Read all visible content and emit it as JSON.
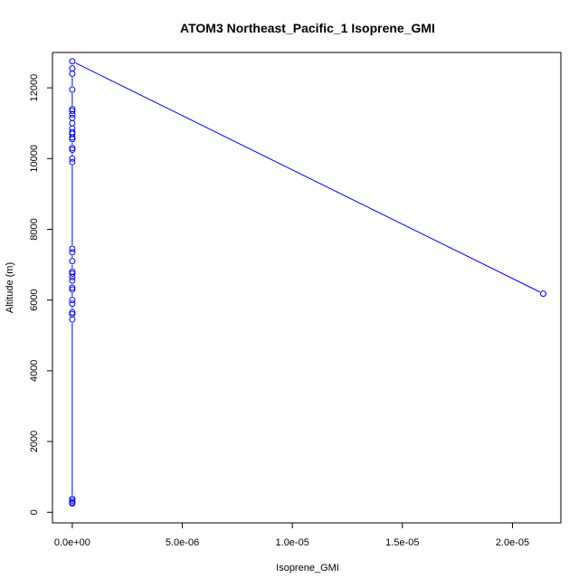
{
  "chart_data": {
    "type": "line",
    "title": "ATOM3 Northeast_Pacific_1 Isoprene_GMI",
    "xlabel": "Isoprene_GMI",
    "ylabel": "Altitude (m)",
    "xlim": [
      -9e-07,
      2.22e-05
    ],
    "ylim": [
      -300,
      13000
    ],
    "x_ticks": [
      0,
      5e-06,
      1e-05,
      1.5e-05,
      2e-05
    ],
    "x_tick_labels": [
      "0.0e+00",
      "5.0e-06",
      "1.0e-05",
      "1.5e-05",
      "2.0e-05"
    ],
    "y_ticks": [
      0,
      2000,
      4000,
      6000,
      8000,
      10000,
      12000
    ],
    "y_tick_labels": [
      "0",
      "2000",
      "4000",
      "6000",
      "8000",
      "10000",
      "12000"
    ],
    "grid": false,
    "markers": "open circles",
    "color": "#0000ff",
    "series": [
      {
        "x": [
          0,
          0,
          0,
          0,
          0,
          0,
          0,
          0,
          0,
          0,
          0,
          0,
          0,
          0,
          0,
          0,
          0,
          0,
          0,
          0,
          0,
          0,
          0,
          0,
          0,
          0,
          0,
          0,
          0,
          0,
          0,
          0,
          0,
          0,
          0,
          0,
          2.14e-05
        ],
        "y": [
          250,
          280,
          330,
          380,
          5450,
          5600,
          5650,
          5900,
          6000,
          6300,
          6350,
          6550,
          6650,
          6750,
          6800,
          7100,
          7350,
          7450,
          9900,
          10000,
          10250,
          10300,
          10550,
          10600,
          10700,
          10750,
          10850,
          11000,
          11150,
          11250,
          11350,
          11400,
          11950,
          12400,
          12550,
          12750,
          6180
        ]
      }
    ]
  }
}
